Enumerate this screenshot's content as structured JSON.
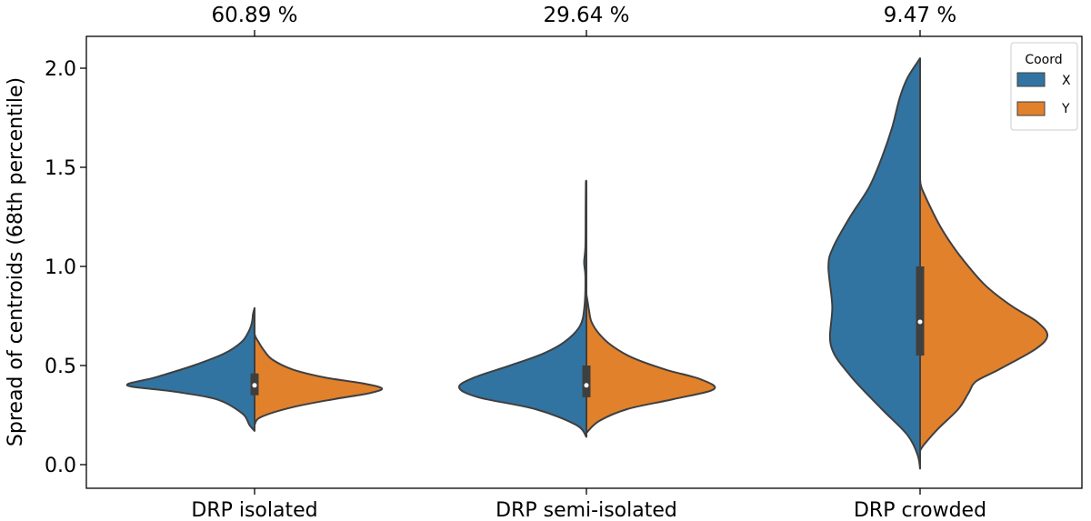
{
  "chart_data": {
    "type": "violin",
    "split": true,
    "ylabel": "Spread of centroids (68th percentile)",
    "xlabel": "",
    "ylim": [
      -0.1,
      2.15
    ],
    "yticks": [
      "0.0",
      "0.5",
      "1.0",
      "1.5",
      "2.0"
    ],
    "categories": [
      "DRP isolated",
      "DRP semi-isolated",
      "DRP crowded"
    ],
    "top_labels": [
      "60.89 %",
      "29.64 %",
      "9.47 %"
    ],
    "legend": {
      "title": "Coord",
      "placement": "top-right",
      "entries": [
        "X",
        "Y"
      ]
    },
    "colors": {
      "X": "#3274a1",
      "Y": "#e1812c",
      "edge": "#3f3f3f",
      "box": "#3f3f3f",
      "median": "#ffffff"
    },
    "series": [
      {
        "category": "DRP isolated",
        "X_profile": [
          [
            0.17,
            0
          ],
          [
            0.2,
            0.04
          ],
          [
            0.26,
            0.1
          ],
          [
            0.33,
            0.3
          ],
          [
            0.37,
            0.65
          ],
          [
            0.4,
            1.0
          ],
          [
            0.44,
            0.78
          ],
          [
            0.5,
            0.48
          ],
          [
            0.56,
            0.24
          ],
          [
            0.62,
            0.1
          ],
          [
            0.68,
            0.04
          ],
          [
            0.72,
            0.02
          ],
          [
            0.76,
            0.012
          ],
          [
            0.79,
            0
          ]
        ],
        "Y_profile": [
          [
            0.2,
            0
          ],
          [
            0.24,
            0.05
          ],
          [
            0.29,
            0.3
          ],
          [
            0.33,
            0.62
          ],
          [
            0.36,
            0.9
          ],
          [
            0.385,
            1.0
          ],
          [
            0.41,
            0.85
          ],
          [
            0.44,
            0.55
          ],
          [
            0.48,
            0.3
          ],
          [
            0.53,
            0.14
          ],
          [
            0.58,
            0.07
          ],
          [
            0.62,
            0.03
          ],
          [
            0.66,
            0
          ],
          [
            0.74,
            0
          ]
        ],
        "box": {
          "q1": 0.35,
          "median": 0.4,
          "q3": 0.46,
          "whisker_low": 0.27,
          "whisker_high": 0.55
        }
      },
      {
        "category": "DRP semi-isolated",
        "X_profile": [
          [
            0.14,
            0
          ],
          [
            0.2,
            0.08
          ],
          [
            0.28,
            0.4
          ],
          [
            0.34,
            0.85
          ],
          [
            0.39,
            1.0
          ],
          [
            0.44,
            0.88
          ],
          [
            0.5,
            0.6
          ],
          [
            0.56,
            0.34
          ],
          [
            0.62,
            0.17
          ],
          [
            0.7,
            0.05
          ],
          [
            0.8,
            0.015
          ],
          [
            0.95,
            0.008
          ],
          [
            1.02,
            0.018
          ],
          [
            1.1,
            0.008
          ],
          [
            1.3,
            0.006
          ],
          [
            1.42,
            0.004
          ],
          [
            1.43,
            0
          ]
        ],
        "Y_profile": [
          [
            0.16,
            0
          ],
          [
            0.22,
            0.1
          ],
          [
            0.28,
            0.32
          ],
          [
            0.33,
            0.68
          ],
          [
            0.38,
            1.0
          ],
          [
            0.43,
            0.9
          ],
          [
            0.48,
            0.62
          ],
          [
            0.54,
            0.36
          ],
          [
            0.6,
            0.2
          ],
          [
            0.66,
            0.1
          ],
          [
            0.72,
            0.04
          ],
          [
            0.78,
            0.02
          ],
          [
            0.82,
            0.01
          ],
          [
            0.86,
            0
          ]
        ],
        "box": {
          "q1": 0.34,
          "median": 0.4,
          "q3": 0.5,
          "whisker_low": 0.22,
          "whisker_high": 0.7
        }
      },
      {
        "category": "DRP crowded",
        "X_profile": [
          [
            -0.02,
            0
          ],
          [
            0.05,
            0.02
          ],
          [
            0.15,
            0.1
          ],
          [
            0.28,
            0.3
          ],
          [
            0.45,
            0.55
          ],
          [
            0.6,
            0.7
          ],
          [
            0.8,
            0.69
          ],
          [
            1.0,
            0.72
          ],
          [
            1.1,
            0.68
          ],
          [
            1.25,
            0.55
          ],
          [
            1.4,
            0.4
          ],
          [
            1.55,
            0.3
          ],
          [
            1.7,
            0.22
          ],
          [
            1.85,
            0.16
          ],
          [
            1.95,
            0.1
          ],
          [
            2.05,
            0
          ]
        ],
        "Y_profile": [
          [
            0.07,
            0
          ],
          [
            0.1,
            0.03
          ],
          [
            0.18,
            0.14
          ],
          [
            0.28,
            0.3
          ],
          [
            0.36,
            0.38
          ],
          [
            0.42,
            0.44
          ],
          [
            0.48,
            0.62
          ],
          [
            0.58,
            0.9
          ],
          [
            0.65,
            1.0
          ],
          [
            0.72,
            0.92
          ],
          [
            0.8,
            0.72
          ],
          [
            0.9,
            0.52
          ],
          [
            1.0,
            0.38
          ],
          [
            1.1,
            0.26
          ],
          [
            1.2,
            0.16
          ],
          [
            1.3,
            0.08
          ],
          [
            1.4,
            0.01
          ],
          [
            1.45,
            0
          ]
        ],
        "box": {
          "q1": 0.55,
          "median": 0.72,
          "q3": 1.0,
          "whisker_low": 0.25,
          "whisker_high": 1.62
        }
      }
    ]
  }
}
